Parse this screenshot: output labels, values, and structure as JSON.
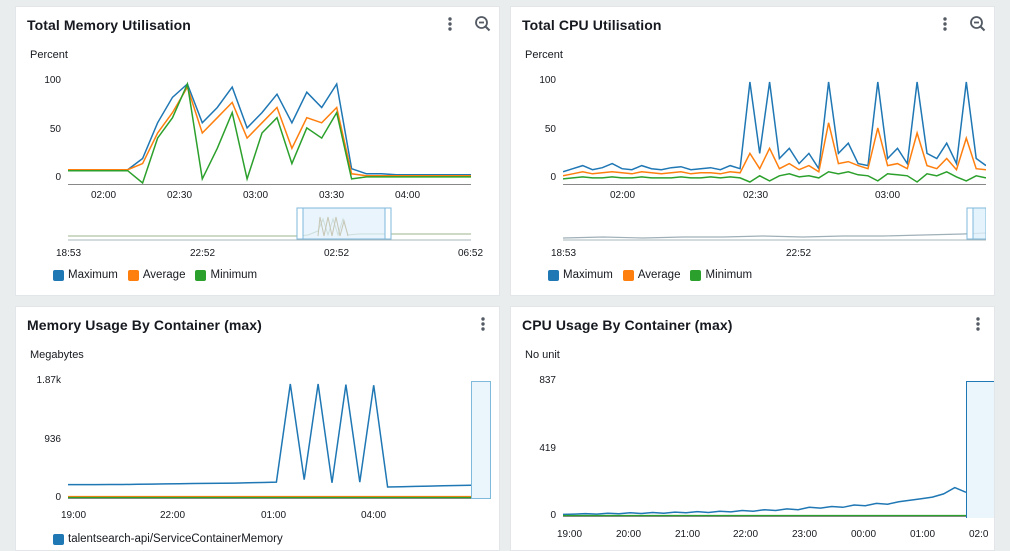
{
  "colors": {
    "maximum": "#1f77b4",
    "average": "#ff7f0e",
    "minimum": "#2ca02c",
    "nav_fill": "#dff0fb",
    "nav_border": "#7fb9dc",
    "axis": "#888888"
  },
  "widgets": [
    {
      "title": "Total Memory Utilisation",
      "ylabel": "Percent",
      "menu_icon": "vertical-dots-icon",
      "zoom_icon": "zoom-out-icon",
      "legend": [
        "Maximum",
        "Average",
        "Minimum"
      ]
    },
    {
      "title": "Total CPU Utilisation",
      "ylabel": "Percent",
      "menu_icon": "vertical-dots-icon",
      "zoom_icon": "zoom-out-icon",
      "legend": [
        "Maximum",
        "Average",
        "Minimum"
      ]
    },
    {
      "title": "Memory Usage By Container (max)",
      "ylabel": "Megabytes",
      "menu_icon": "vertical-dots-icon",
      "legend": [
        "talentsearch-api/ServiceContainerMemory"
      ]
    },
    {
      "title": "CPU Usage By Container (max)",
      "ylabel": "No unit",
      "menu_icon": "vertical-dots-icon",
      "legend": []
    }
  ],
  "chart_data": [
    {
      "type": "line",
      "title": "Total Memory Utilisation",
      "ylabel": "Percent",
      "ylim": [
        0,
        100
      ],
      "y_ticks": [
        "100",
        "50",
        "0"
      ],
      "x_ticks": [
        "02:00",
        "02:30",
        "03:00",
        "03:30",
        "04:00"
      ],
      "nav_ticks": [
        "18:53",
        "22:52",
        "02:52",
        "06:52"
      ],
      "x": [
        "01:40",
        "01:50",
        "02:00",
        "02:10",
        "02:20",
        "02:25",
        "02:30",
        "02:35",
        "02:40",
        "02:43",
        "02:46",
        "02:50",
        "02:53",
        "02:56",
        "03:00",
        "03:03",
        "03:06",
        "03:10",
        "03:14",
        "03:18",
        "03:20",
        "03:30",
        "03:40",
        "03:50",
        "04:00",
        "04:10",
        "04:20",
        "04:30"
      ],
      "series": [
        {
          "name": "Maximum",
          "values": [
            14,
            14,
            14,
            14,
            14,
            25,
            60,
            85,
            98,
            60,
            75,
            95,
            55,
            70,
            88,
            60,
            90,
            75,
            98,
            15,
            10,
            10,
            9,
            9,
            9,
            9,
            9,
            9
          ]
        },
        {
          "name": "Average",
          "values": [
            14,
            14,
            14,
            14,
            14,
            20,
            50,
            70,
            95,
            50,
            65,
            80,
            45,
            60,
            75,
            35,
            65,
            60,
            75,
            10,
            8,
            8,
            8,
            8,
            8,
            8,
            8,
            8
          ]
        },
        {
          "name": "Minimum",
          "values": [
            13,
            13,
            13,
            13,
            13,
            1,
            45,
            65,
            98,
            5,
            35,
            70,
            5,
            50,
            65,
            20,
            55,
            45,
            70,
            5,
            7,
            7,
            7,
            7,
            7,
            7,
            7,
            7
          ]
        }
      ],
      "grid": false,
      "legend_position": "bottom-left"
    },
    {
      "type": "line",
      "title": "Total CPU Utilisation",
      "ylabel": "Percent",
      "ylim": [
        0,
        100
      ],
      "y_ticks": [
        "100",
        "50",
        "0"
      ],
      "x_ticks": [
        "02:00",
        "02:30",
        "03:00"
      ],
      "nav_ticks": [
        "18:53",
        "22:52"
      ],
      "series": [
        {
          "name": "Maximum",
          "values": [
            12,
            15,
            18,
            14,
            16,
            20,
            15,
            14,
            18,
            15,
            14,
            16,
            17,
            14,
            15,
            16,
            14,
            18,
            15,
            100,
            30,
            100,
            25,
            35,
            20,
            30,
            15,
            100,
            30,
            40,
            20,
            18,
            100,
            25,
            35,
            20,
            100,
            30,
            25,
            40,
            20,
            100,
            25,
            18
          ]
        },
        {
          "name": "Average",
          "values": [
            8,
            10,
            12,
            10,
            11,
            12,
            11,
            10,
            12,
            11,
            10,
            11,
            12,
            10,
            11,
            11,
            10,
            12,
            11,
            30,
            15,
            35,
            15,
            20,
            14,
            18,
            12,
            60,
            20,
            22,
            18,
            15,
            55,
            18,
            20,
            15,
            50,
            18,
            15,
            25,
            14,
            45,
            15,
            14
          ]
        },
        {
          "name": "Minimum",
          "values": [
            5,
            6,
            7,
            6,
            6,
            7,
            6,
            6,
            7,
            6,
            6,
            6,
            7,
            6,
            6,
            7,
            6,
            7,
            6,
            2,
            8,
            3,
            8,
            10,
            7,
            8,
            6,
            12,
            10,
            12,
            9,
            8,
            3,
            10,
            9,
            8,
            2,
            10,
            8,
            12,
            7,
            3,
            8,
            6
          ]
        }
      ],
      "grid": false,
      "legend_position": "bottom-left"
    },
    {
      "type": "line",
      "title": "Memory Usage By Container (max)",
      "ylabel": "Megabytes",
      "y_ticks": [
        "1.87k",
        "936",
        "0"
      ],
      "x_ticks": [
        "19:00",
        "22:00",
        "01:00",
        "04:00"
      ],
      "series": [
        {
          "name": "talentsearch-api/ServiceContainerMemory",
          "values": [
            220,
            220,
            220,
            222,
            222,
            225,
            228,
            232,
            235,
            238,
            240,
            242,
            245,
            250,
            255,
            260,
            1870,
            300,
            1870,
            250,
            1860,
            260,
            1850,
            180,
            185,
            190,
            195,
            200,
            205,
            210
          ]
        }
      ],
      "legend_position": "bottom-left"
    },
    {
      "type": "line",
      "title": "CPU Usage By Container (max)",
      "ylabel": "No unit",
      "y_ticks": [
        "837",
        "419",
        "0"
      ],
      "x_ticks": [
        "19:00",
        "20:00",
        "21:00",
        "22:00",
        "23:00",
        "00:00",
        "01:00",
        "02:0"
      ],
      "series": [
        {
          "values": [
            10,
            12,
            15,
            12,
            18,
            14,
            20,
            16,
            22,
            18,
            25,
            20,
            28,
            22,
            30,
            26,
            35,
            30,
            40,
            35,
            45,
            40,
            55,
            50,
            60,
            55,
            70,
            65,
            80,
            75,
            90,
            100,
            110,
            120,
            140,
            180,
            150
          ]
        }
      ]
    }
  ]
}
